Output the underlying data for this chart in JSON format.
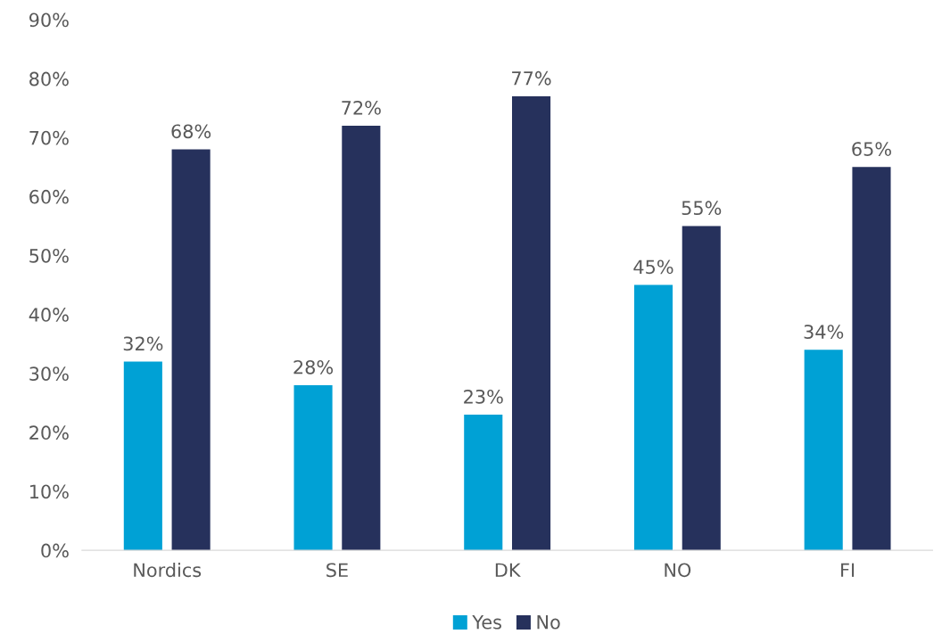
{
  "chart_data": {
    "type": "bar",
    "categories": [
      "Nordics",
      "SE",
      "DK",
      "NO",
      "FI"
    ],
    "series": [
      {
        "name": "Yes",
        "color": "#00a1d5",
        "values": [
          32,
          28,
          23,
          45,
          34
        ],
        "value_labels": [
          "32%",
          "28%",
          "23%",
          "45%",
          "34%"
        ]
      },
      {
        "name": "No",
        "color": "#26315c",
        "values": [
          68,
          72,
          77,
          55,
          65
        ],
        "value_labels": [
          "68%",
          "72%",
          "77%",
          "55%",
          "65%"
        ]
      }
    ],
    "ylim": [
      0,
      90
    ],
    "yticks": [
      {
        "value": 0,
        "label": "0%"
      },
      {
        "value": 10,
        "label": "10%"
      },
      {
        "value": 20,
        "label": "20%"
      },
      {
        "value": 30,
        "label": "30%"
      },
      {
        "value": 40,
        "label": "40%"
      },
      {
        "value": 50,
        "label": "50%"
      },
      {
        "value": 60,
        "label": "60%"
      },
      {
        "value": 70,
        "label": "70%"
      },
      {
        "value": 80,
        "label": "80%"
      },
      {
        "value": 90,
        "label": "90%"
      }
    ],
    "grid": false,
    "legend": "bottom"
  }
}
